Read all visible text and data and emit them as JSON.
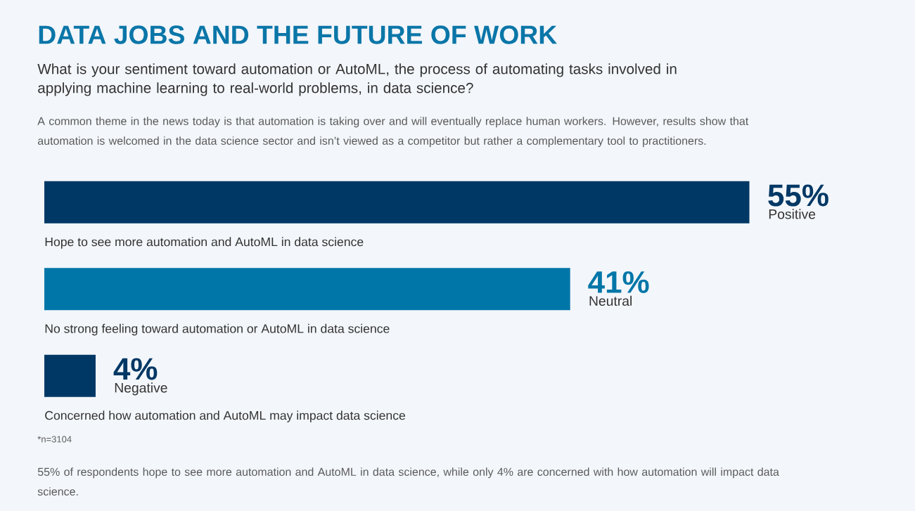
{
  "chart_data": {
    "type": "bar",
    "orientation": "horizontal",
    "title": "DATA JOBS AND THE FUTURE OF WORK",
    "subtitle": "What is your sentiment toward automation or AutoML, the process of automating tasks involved in applying machine learning to real-world problems, in data science?",
    "categories": [
      "Hope to see more automation and AutoML in data science",
      "No strong feeling toward automation or AutoML in data science",
      "Concerned how automation and AutoML may impact data science"
    ],
    "values": [
      55,
      41,
      4
    ],
    "colors": [
      "#003865",
      "#0076a8",
      "#003865"
    ],
    "value_labels": [
      "55%",
      "41%",
      "4%"
    ],
    "tick_labels": false,
    "xlim": [
      0,
      55
    ],
    "annotations": [
      "Positive",
      "Neutral",
      "Negative",
      "A common theme in the news today is that automation is taking over and will eventually replace human workers. However, results show that automation is welcomed in the data science sector and isn’t viewed as a competitor but rather a complementary tool to practitioners.",
      "*n=3104",
      "55% of respondents hope to see more automation and AutoML in data science, while only 4% are concerned with how automation will impact data science."
    ]
  }
}
